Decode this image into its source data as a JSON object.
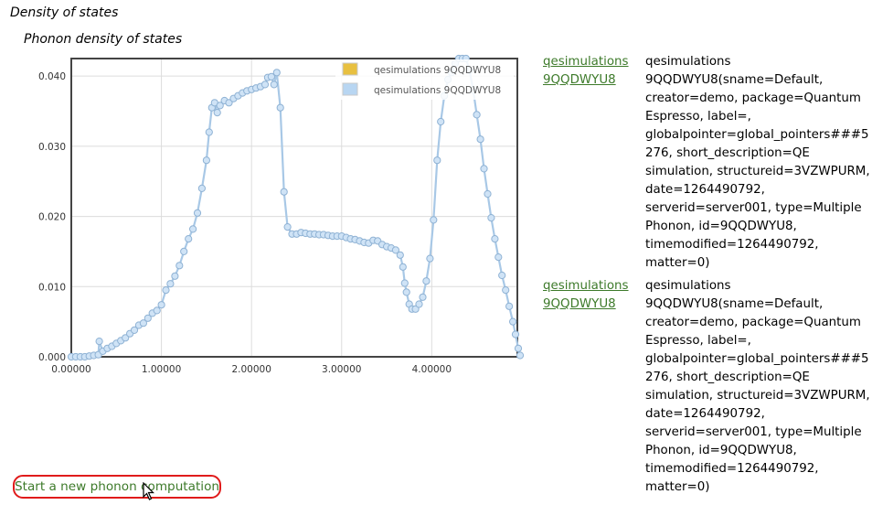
{
  "page": {
    "section_title": "Density of states",
    "chart_title": "Phonon density of states"
  },
  "chart_data": {
    "type": "line",
    "title": "",
    "xlabel": "",
    "ylabel": "",
    "xlim": [
      0,
      4.95
    ],
    "ylim": [
      0,
      0.0425
    ],
    "x_ticks": [
      "0.00000",
      "1.00000",
      "2.00000",
      "3.00000",
      "4.00000"
    ],
    "y_ticks": [
      "0.000",
      "0.010",
      "0.020",
      "0.030",
      "0.040"
    ],
    "grid": true,
    "legend_position": "top-right",
    "legend": [
      {
        "label": "qesimulations 9QQDWYU8",
        "color": "#e8c040"
      },
      {
        "label": "qesimulations 9QQDWYU8",
        "color": "#b8d6f2"
      }
    ],
    "series": [
      {
        "name": "qesimulations 9QQDWYU8",
        "color": "#e8c040",
        "points": []
      },
      {
        "name": "qesimulations 9QQDWYU8",
        "color": "#b8d6f2",
        "points": [
          [
            0.0,
            0.0
          ],
          [
            0.05,
            0.0
          ],
          [
            0.1,
            0.0
          ],
          [
            0.15,
            0.0
          ],
          [
            0.2,
            0.0001
          ],
          [
            0.25,
            0.0002
          ],
          [
            0.3,
            0.0003
          ],
          [
            0.31,
            0.0022
          ],
          [
            0.35,
            0.0008
          ],
          [
            0.4,
            0.0012
          ],
          [
            0.45,
            0.0015
          ],
          [
            0.5,
            0.0019
          ],
          [
            0.55,
            0.0023
          ],
          [
            0.6,
            0.0027
          ],
          [
            0.65,
            0.0033
          ],
          [
            0.7,
            0.0038
          ],
          [
            0.75,
            0.0045
          ],
          [
            0.8,
            0.0048
          ],
          [
            0.85,
            0.0055
          ],
          [
            0.9,
            0.0062
          ],
          [
            0.95,
            0.0066
          ],
          [
            1.0,
            0.0074
          ],
          [
            1.05,
            0.0095
          ],
          [
            1.1,
            0.0104
          ],
          [
            1.15,
            0.0115
          ],
          [
            1.2,
            0.013
          ],
          [
            1.25,
            0.015
          ],
          [
            1.3,
            0.0168
          ],
          [
            1.35,
            0.0182
          ],
          [
            1.4,
            0.0205
          ],
          [
            1.45,
            0.024
          ],
          [
            1.5,
            0.028
          ],
          [
            1.53,
            0.032
          ],
          [
            1.56,
            0.0355
          ],
          [
            1.59,
            0.0362
          ],
          [
            1.62,
            0.0348
          ],
          [
            1.65,
            0.0358
          ],
          [
            1.7,
            0.0365
          ],
          [
            1.75,
            0.0362
          ],
          [
            1.8,
            0.0368
          ],
          [
            1.85,
            0.0372
          ],
          [
            1.9,
            0.0376
          ],
          [
            1.95,
            0.0379
          ],
          [
            2.0,
            0.0381
          ],
          [
            2.05,
            0.0383
          ],
          [
            2.1,
            0.0385
          ],
          [
            2.15,
            0.0388
          ],
          [
            2.18,
            0.0398
          ],
          [
            2.22,
            0.0399
          ],
          [
            2.25,
            0.0388
          ],
          [
            2.28,
            0.0405
          ],
          [
            2.32,
            0.0355
          ],
          [
            2.36,
            0.0235
          ],
          [
            2.4,
            0.0185
          ],
          [
            2.45,
            0.0175
          ],
          [
            2.5,
            0.0175
          ],
          [
            2.55,
            0.0177
          ],
          [
            2.6,
            0.0176
          ],
          [
            2.65,
            0.0175
          ],
          [
            2.7,
            0.0175
          ],
          [
            2.75,
            0.0174
          ],
          [
            2.8,
            0.0174
          ],
          [
            2.85,
            0.0173
          ],
          [
            2.9,
            0.0172
          ],
          [
            2.95,
            0.0172
          ],
          [
            3.0,
            0.0172
          ],
          [
            3.05,
            0.017
          ],
          [
            3.1,
            0.0168
          ],
          [
            3.15,
            0.0167
          ],
          [
            3.2,
            0.0165
          ],
          [
            3.25,
            0.0163
          ],
          [
            3.3,
            0.0162
          ],
          [
            3.35,
            0.0166
          ],
          [
            3.4,
            0.0165
          ],
          [
            3.45,
            0.016
          ],
          [
            3.5,
            0.0157
          ],
          [
            3.55,
            0.0155
          ],
          [
            3.6,
            0.0152
          ],
          [
            3.65,
            0.0145
          ],
          [
            3.68,
            0.0128
          ],
          [
            3.7,
            0.0105
          ],
          [
            3.72,
            0.0092
          ],
          [
            3.75,
            0.0075
          ],
          [
            3.78,
            0.0068
          ],
          [
            3.82,
            0.0068
          ],
          [
            3.86,
            0.0075
          ],
          [
            3.9,
            0.0085
          ],
          [
            3.94,
            0.0108
          ],
          [
            3.98,
            0.014
          ],
          [
            4.02,
            0.0195
          ],
          [
            4.06,
            0.028
          ],
          [
            4.1,
            0.0335
          ],
          [
            4.14,
            0.0372
          ],
          [
            4.18,
            0.0395
          ],
          [
            4.22,
            0.0405
          ],
          [
            4.26,
            0.0418
          ],
          [
            4.3,
            0.0425
          ],
          [
            4.34,
            0.0428
          ],
          [
            4.38,
            0.0425
          ],
          [
            4.42,
            0.0408
          ],
          [
            4.46,
            0.038
          ],
          [
            4.5,
            0.0345
          ],
          [
            4.54,
            0.031
          ],
          [
            4.58,
            0.0268
          ],
          [
            4.62,
            0.0232
          ],
          [
            4.66,
            0.0198
          ],
          [
            4.7,
            0.0168
          ],
          [
            4.74,
            0.0142
          ],
          [
            4.78,
            0.0116
          ],
          [
            4.82,
            0.0095
          ],
          [
            4.86,
            0.0072
          ],
          [
            4.9,
            0.005
          ],
          [
            4.93,
            0.0032
          ],
          [
            4.96,
            0.0012
          ],
          [
            4.98,
            0.0002
          ]
        ]
      }
    ]
  },
  "records": [
    {
      "link_label": "qesimulations 9QQDWYU8",
      "description": "qesimulations 9QQDWYU8(sname=Default, creator=demo, package=Quantum Espresso, label=, globalpointer=global_pointers###5276, short_description=QE simulation, structureid=3VZWPURM, date=1264490792, serverid=server001, type=Multiple Phonon, id=9QQDWYU8, timemodified=1264490792, matter=0)"
    },
    {
      "link_label": "qesimulations 9QQDWYU8",
      "description": "qesimulations 9QQDWYU8(sname=Default, creator=demo, package=Quantum Espresso, label=, globalpointer=global_pointers###5276, short_description=QE simulation, structureid=3VZWPURM, date=1264490792, serverid=server001, type=Multiple Phonon, id=9QQDWYU8, timemodified=1264490792, matter=0)"
    }
  ],
  "actions": {
    "new_computation": "Start a new phonon computation"
  },
  "icons": {
    "cursor": "mouse-pointer-icon"
  }
}
